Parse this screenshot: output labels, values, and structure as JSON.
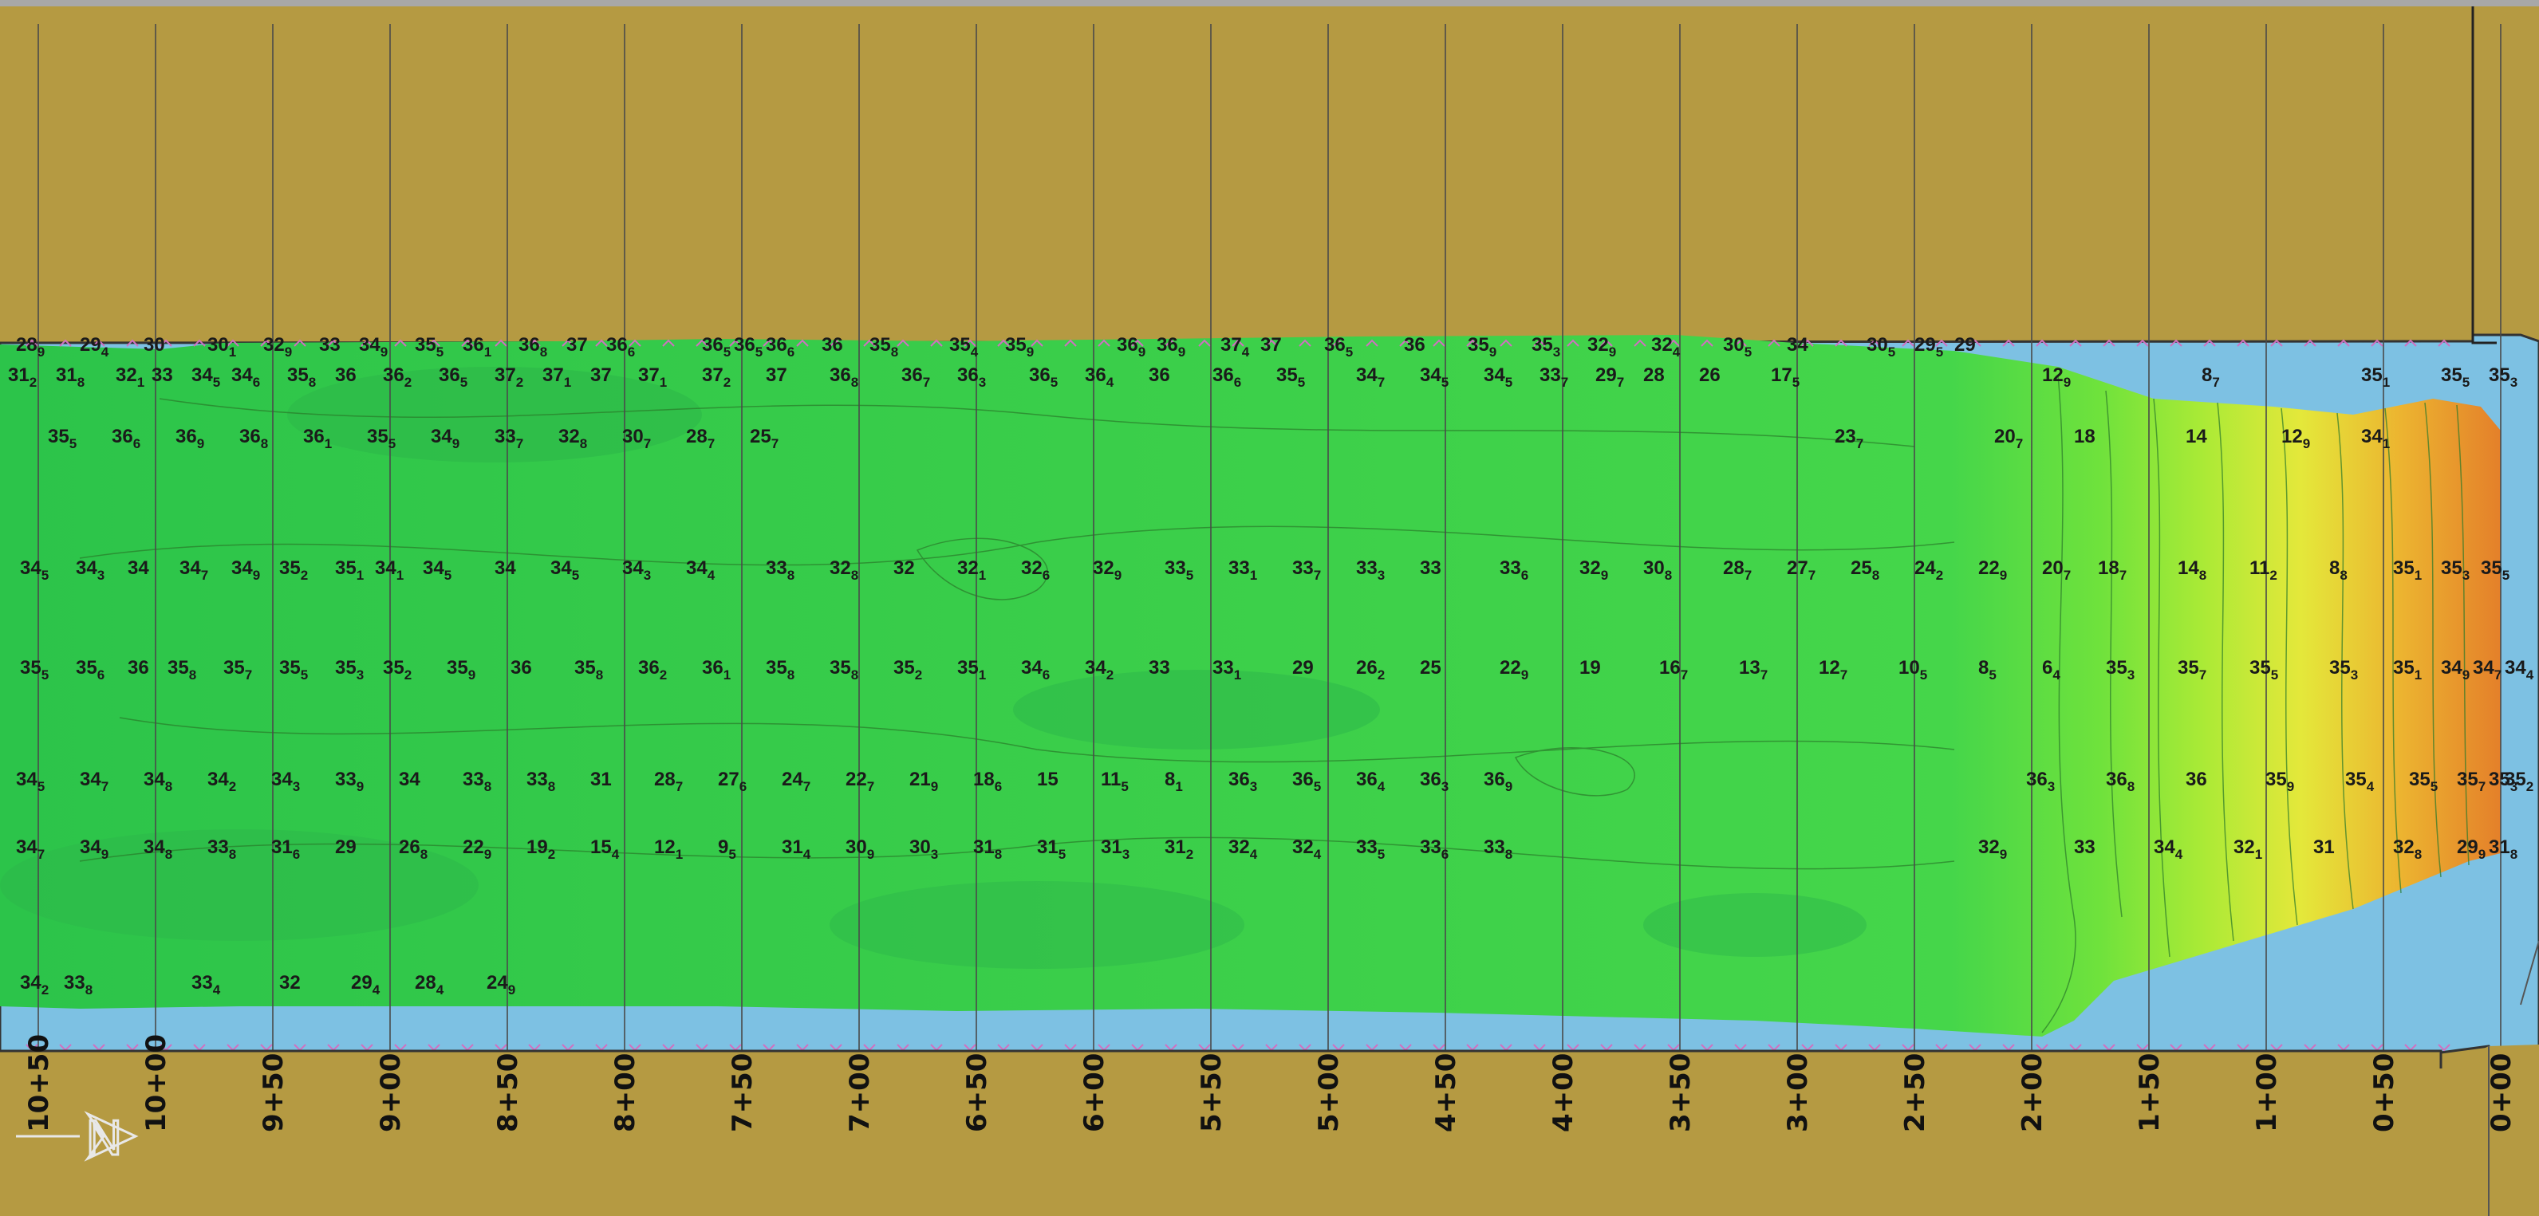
{
  "colors": {
    "land": "#b59a42",
    "water": "#7dc1e3",
    "deep_green": "#2fc64c",
    "mid_green": "#40d34c",
    "light_green": "#7fe43a",
    "yellow": "#e8e838",
    "orange": "#e48a2a",
    "gridline": "#555555"
  },
  "north_arrow": {
    "label": "N",
    "icon": "north-arrow-icon"
  },
  "stations": [
    "10+50",
    "10+00",
    "9+50",
    "9+00",
    "8+50",
    "8+00",
    "7+50",
    "7+00",
    "6+50",
    "6+00",
    "5+50",
    "5+00",
    "4+50",
    "4+00",
    "3+50",
    "3+00",
    "2+50",
    "2+00",
    "1+50",
    "1+00",
    "0+50",
    "0+00"
  ],
  "soundings": [
    {
      "v": "28",
      "s": "9"
    },
    {
      "v": "29",
      "s": "4"
    },
    {
      "v": "30",
      "s": ""
    },
    {
      "v": "30",
      "s": "1"
    },
    {
      "v": "32",
      "s": "9"
    },
    {
      "v": "33",
      "s": ""
    },
    {
      "v": "34",
      "s": "9"
    },
    {
      "v": "35",
      "s": "5"
    },
    {
      "v": "36",
      "s": "1"
    },
    {
      "v": "36",
      "s": "8"
    },
    {
      "v": "37",
      "s": ""
    },
    {
      "v": "36",
      "s": "6"
    },
    {
      "v": "36",
      "s": "5"
    },
    {
      "v": "36",
      "s": "5"
    },
    {
      "v": "36",
      "s": "6"
    },
    {
      "v": "36",
      "s": ""
    },
    {
      "v": "35",
      "s": "8"
    },
    {
      "v": "35",
      "s": "4"
    },
    {
      "v": "35",
      "s": "9"
    },
    {
      "v": "36",
      "s": "9"
    },
    {
      "v": "36",
      "s": "9"
    },
    {
      "v": "37",
      "s": "4"
    },
    {
      "v": "37",
      "s": ""
    },
    {
      "v": "36",
      "s": "5"
    },
    {
      "v": "36",
      "s": ""
    },
    {
      "v": "35",
      "s": "9"
    },
    {
      "v": "35",
      "s": "3"
    },
    {
      "v": "32",
      "s": "9"
    },
    {
      "v": "32",
      "s": "4"
    },
    {
      "v": "30",
      "s": "5"
    },
    {
      "v": "34",
      "s": ""
    },
    {
      "v": "30",
      "s": "5"
    },
    {
      "v": "29",
      "s": "5"
    },
    {
      "v": "29",
      "s": ""
    },
    {
      "v": "31",
      "s": "2"
    },
    {
      "v": "31",
      "s": "8"
    },
    {
      "v": "32",
      "s": "1"
    },
    {
      "v": "33",
      "s": ""
    },
    {
      "v": "34",
      "s": "5"
    },
    {
      "v": "34",
      "s": "6"
    },
    {
      "v": "35",
      "s": "8"
    },
    {
      "v": "36",
      "s": ""
    },
    {
      "v": "36",
      "s": "2"
    },
    {
      "v": "36",
      "s": "5"
    },
    {
      "v": "37",
      "s": "2"
    },
    {
      "v": "37",
      "s": "1"
    },
    {
      "v": "37",
      "s": ""
    },
    {
      "v": "37",
      "s": "1"
    },
    {
      "v": "37",
      "s": "2"
    },
    {
      "v": "37",
      "s": ""
    },
    {
      "v": "36",
      "s": "8"
    },
    {
      "v": "36",
      "s": "7"
    },
    {
      "v": "36",
      "s": "3"
    },
    {
      "v": "36",
      "s": "5"
    },
    {
      "v": "36",
      "s": "4"
    },
    {
      "v": "36",
      "s": ""
    },
    {
      "v": "36",
      "s": "6"
    },
    {
      "v": "35",
      "s": "5"
    },
    {
      "v": "34",
      "s": "7"
    },
    {
      "v": "34",
      "s": "5"
    },
    {
      "v": "34",
      "s": "5"
    },
    {
      "v": "33",
      "s": "7"
    },
    {
      "v": "29",
      "s": "7"
    },
    {
      "v": "28",
      "s": ""
    },
    {
      "v": "26",
      "s": ""
    },
    {
      "v": "17",
      "s": "5"
    },
    {
      "v": "12",
      "s": "9"
    },
    {
      "v": "8",
      "s": "7"
    },
    {
      "v": "35",
      "s": "1"
    },
    {
      "v": "35",
      "s": "5"
    },
    {
      "v": "35",
      "s": "3"
    },
    {
      "v": "35",
      "s": "5"
    },
    {
      "v": "36",
      "s": "6"
    },
    {
      "v": "36",
      "s": "9"
    },
    {
      "v": "36",
      "s": "8"
    },
    {
      "v": "36",
      "s": "1"
    },
    {
      "v": "35",
      "s": "5"
    },
    {
      "v": "34",
      "s": "9"
    },
    {
      "v": "33",
      "s": "7"
    },
    {
      "v": "32",
      "s": "8"
    },
    {
      "v": "30",
      "s": "7"
    },
    {
      "v": "28",
      "s": "7"
    },
    {
      "v": "25",
      "s": "7"
    },
    {
      "v": "23",
      "s": "7"
    },
    {
      "v": "20",
      "s": "7"
    },
    {
      "v": "18",
      "s": ""
    },
    {
      "v": "14",
      "s": ""
    },
    {
      "v": "12",
      "s": "9"
    },
    {
      "v": "34",
      "s": "1"
    },
    {
      "v": "34",
      "s": "5"
    },
    {
      "v": "34",
      "s": "3"
    },
    {
      "v": "34",
      "s": ""
    },
    {
      "v": "34",
      "s": "7"
    },
    {
      "v": "34",
      "s": "9"
    },
    {
      "v": "35",
      "s": "2"
    },
    {
      "v": "35",
      "s": "1"
    },
    {
      "v": "34",
      "s": "1"
    },
    {
      "v": "34",
      "s": "5"
    },
    {
      "v": "34",
      "s": ""
    },
    {
      "v": "34",
      "s": "5"
    },
    {
      "v": "34",
      "s": "3"
    },
    {
      "v": "34",
      "s": "4"
    },
    {
      "v": "33",
      "s": "8"
    },
    {
      "v": "32",
      "s": "8"
    },
    {
      "v": "32",
      "s": ""
    },
    {
      "v": "32",
      "s": "1"
    },
    {
      "v": "32",
      "s": "6"
    },
    {
      "v": "32",
      "s": "9"
    },
    {
      "v": "33",
      "s": "5"
    },
    {
      "v": "33",
      "s": "1"
    },
    {
      "v": "33",
      "s": "7"
    },
    {
      "v": "33",
      "s": "3"
    },
    {
      "v": "33",
      "s": ""
    },
    {
      "v": "33",
      "s": "6"
    },
    {
      "v": "32",
      "s": "9"
    },
    {
      "v": "30",
      "s": "8"
    },
    {
      "v": "28",
      "s": "7"
    },
    {
      "v": "27",
      "s": "7"
    },
    {
      "v": "25",
      "s": "8"
    },
    {
      "v": "24",
      "s": "2"
    },
    {
      "v": "22",
      "s": "9"
    },
    {
      "v": "20",
      "s": "7"
    },
    {
      "v": "18",
      "s": "7"
    },
    {
      "v": "14",
      "s": "8"
    },
    {
      "v": "11",
      "s": "2"
    },
    {
      "v": "8",
      "s": "8"
    },
    {
      "v": "35",
      "s": "1"
    },
    {
      "v": "35",
      "s": "3"
    },
    {
      "v": "35",
      "s": "5"
    },
    {
      "v": "35",
      "s": "5"
    },
    {
      "v": "35",
      "s": "6"
    },
    {
      "v": "36",
      "s": ""
    },
    {
      "v": "35",
      "s": "8"
    },
    {
      "v": "35",
      "s": "7"
    },
    {
      "v": "35",
      "s": "5"
    },
    {
      "v": "35",
      "s": "3"
    },
    {
      "v": "35",
      "s": "2"
    },
    {
      "v": "35",
      "s": "9"
    },
    {
      "v": "36",
      "s": ""
    },
    {
      "v": "35",
      "s": "8"
    },
    {
      "v": "36",
      "s": "2"
    },
    {
      "v": "36",
      "s": "1"
    },
    {
      "v": "35",
      "s": "8"
    },
    {
      "v": "35",
      "s": "8"
    },
    {
      "v": "35",
      "s": "2"
    },
    {
      "v": "35",
      "s": "1"
    },
    {
      "v": "34",
      "s": "6"
    },
    {
      "v": "34",
      "s": "2"
    },
    {
      "v": "33",
      "s": ""
    },
    {
      "v": "33",
      "s": "1"
    },
    {
      "v": "29",
      "s": ""
    },
    {
      "v": "26",
      "s": "2"
    },
    {
      "v": "25",
      "s": ""
    },
    {
      "v": "22",
      "s": "9"
    },
    {
      "v": "19",
      "s": ""
    },
    {
      "v": "16",
      "s": "7"
    },
    {
      "v": "13",
      "s": "7"
    },
    {
      "v": "12",
      "s": "7"
    },
    {
      "v": "10",
      "s": "5"
    },
    {
      "v": "8",
      "s": "5"
    },
    {
      "v": "6",
      "s": "4"
    },
    {
      "v": "35",
      "s": "3"
    },
    {
      "v": "35",
      "s": "7"
    },
    {
      "v": "35",
      "s": "5"
    },
    {
      "v": "35",
      "s": "3"
    },
    {
      "v": "35",
      "s": "1"
    },
    {
      "v": "34",
      "s": "9"
    },
    {
      "v": "34",
      "s": "7"
    },
    {
      "v": "34",
      "s": "4"
    },
    {
      "v": "34",
      "s": "5"
    },
    {
      "v": "34",
      "s": "7"
    },
    {
      "v": "34",
      "s": "8"
    },
    {
      "v": "34",
      "s": "2"
    },
    {
      "v": "34",
      "s": "3"
    },
    {
      "v": "33",
      "s": "9"
    },
    {
      "v": "34",
      "s": ""
    },
    {
      "v": "33",
      "s": "8"
    },
    {
      "v": "33",
      "s": "8"
    },
    {
      "v": "31",
      "s": ""
    },
    {
      "v": "28",
      "s": "7"
    },
    {
      "v": "27",
      "s": "6"
    },
    {
      "v": "24",
      "s": "7"
    },
    {
      "v": "22",
      "s": "7"
    },
    {
      "v": "21",
      "s": "9"
    },
    {
      "v": "18",
      "s": "6"
    },
    {
      "v": "15",
      "s": ""
    },
    {
      "v": "11",
      "s": "5"
    },
    {
      "v": "8",
      "s": "1"
    },
    {
      "v": "36",
      "s": "3"
    },
    {
      "v": "36",
      "s": "5"
    },
    {
      "v": "36",
      "s": "4"
    },
    {
      "v": "36",
      "s": "3"
    },
    {
      "v": "36",
      "s": "9"
    },
    {
      "v": "36",
      "s": "3"
    },
    {
      "v": "36",
      "s": "8"
    },
    {
      "v": "36",
      "s": ""
    },
    {
      "v": "35",
      "s": "9"
    },
    {
      "v": "35",
      "s": "4"
    },
    {
      "v": "35",
      "s": "5"
    },
    {
      "v": "35",
      "s": "7"
    },
    {
      "v": "35",
      "s": "3"
    },
    {
      "v": "35",
      "s": "2"
    },
    {
      "v": "34",
      "s": "7"
    },
    {
      "v": "34",
      "s": "9"
    },
    {
      "v": "34",
      "s": "8"
    },
    {
      "v": "33",
      "s": "8"
    },
    {
      "v": "31",
      "s": "6"
    },
    {
      "v": "29",
      "s": ""
    },
    {
      "v": "26",
      "s": "8"
    },
    {
      "v": "22",
      "s": "9"
    },
    {
      "v": "19",
      "s": "2"
    },
    {
      "v": "15",
      "s": "4"
    },
    {
      "v": "12",
      "s": "1"
    },
    {
      "v": "9",
      "s": "5"
    },
    {
      "v": "31",
      "s": "4"
    },
    {
      "v": "30",
      "s": "9"
    },
    {
      "v": "30",
      "s": "3"
    },
    {
      "v": "31",
      "s": "8"
    },
    {
      "v": "31",
      "s": "5"
    },
    {
      "v": "31",
      "s": "3"
    },
    {
      "v": "31",
      "s": "2"
    },
    {
      "v": "32",
      "s": "4"
    },
    {
      "v": "32",
      "s": "4"
    },
    {
      "v": "33",
      "s": "5"
    },
    {
      "v": "33",
      "s": "6"
    },
    {
      "v": "33",
      "s": "8"
    },
    {
      "v": "32",
      "s": "9"
    },
    {
      "v": "33",
      "s": ""
    },
    {
      "v": "34",
      "s": "4"
    },
    {
      "v": "32",
      "s": "1"
    },
    {
      "v": "31",
      "s": ""
    },
    {
      "v": "32",
      "s": "8"
    },
    {
      "v": "29",
      "s": "9"
    },
    {
      "v": "31",
      "s": "8"
    },
    {
      "v": "34",
      "s": "2"
    },
    {
      "v": "33",
      "s": "8"
    },
    {
      "v": "33",
      "s": "4"
    },
    {
      "v": "32",
      "s": ""
    },
    {
      "v": "29",
      "s": "4"
    },
    {
      "v": "28",
      "s": "4"
    },
    {
      "v": "24",
      "s": "9"
    }
  ]
}
